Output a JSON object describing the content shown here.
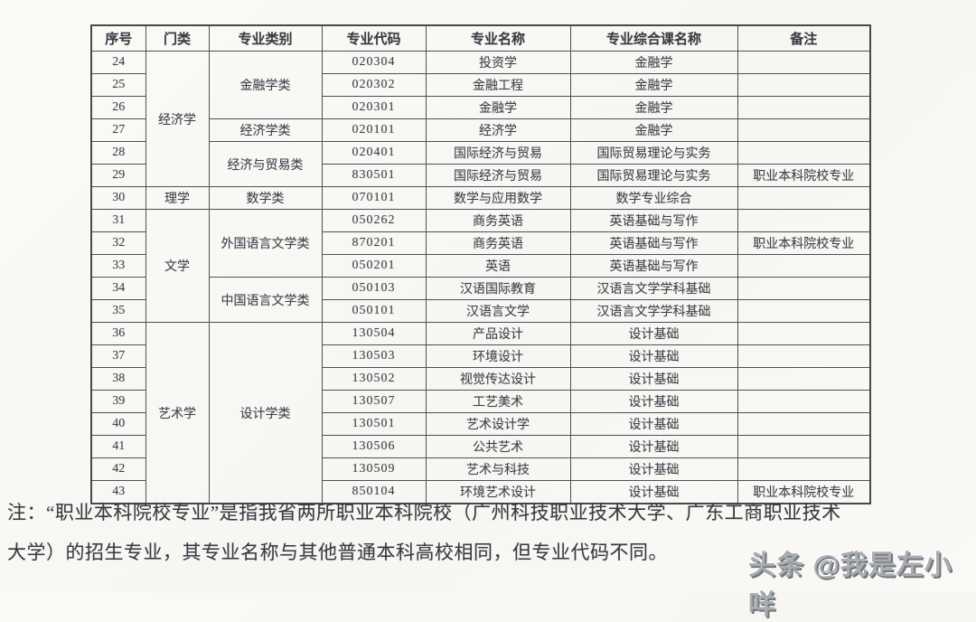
{
  "table": {
    "headers": [
      "序号",
      "门类",
      "专业类别",
      "专业代码",
      "专业名称",
      "专业综合课名称",
      "备注"
    ],
    "rows": [
      {
        "no": "24",
        "menlei": {
          "text": "经济学",
          "span": 6
        },
        "category": {
          "text": "金融学类",
          "span": 3
        },
        "code": "020304",
        "major": "投资学",
        "course": "金融学",
        "remark": ""
      },
      {
        "no": "25",
        "code": "020302",
        "major": "金融工程",
        "course": "金融学",
        "remark": ""
      },
      {
        "no": "26",
        "code": "020301",
        "major": "金融学",
        "course": "金融学",
        "remark": ""
      },
      {
        "no": "27",
        "category": {
          "text": "经济学类",
          "span": 1
        },
        "code": "020101",
        "major": "经济学",
        "course": "金融学",
        "remark": ""
      },
      {
        "no": "28",
        "category": {
          "text": "经济与贸易类",
          "span": 2
        },
        "code": "020401",
        "major": "国际经济与贸易",
        "course": "国际贸易理论与实务",
        "remark": ""
      },
      {
        "no": "29",
        "code": "830501",
        "major": "国际经济与贸易",
        "course": "国际贸易理论与实务",
        "remark": "职业本科院校专业"
      },
      {
        "no": "30",
        "menlei": {
          "text": "理学",
          "span": 1
        },
        "category": {
          "text": "数学类",
          "span": 1
        },
        "code": "070101",
        "major": "数学与应用数学",
        "course": "数学专业综合",
        "remark": ""
      },
      {
        "no": "31",
        "menlei": {
          "text": "文学",
          "span": 5
        },
        "category": {
          "text": "外国语言文学类",
          "span": 3
        },
        "code": "050262",
        "major": "商务英语",
        "course": "英语基础与写作",
        "remark": ""
      },
      {
        "no": "32",
        "code": "870201",
        "major": "商务英语",
        "course": "英语基础与写作",
        "remark": "职业本科院校专业"
      },
      {
        "no": "33",
        "code": "050201",
        "major": "英语",
        "course": "英语基础与写作",
        "remark": ""
      },
      {
        "no": "34",
        "category": {
          "text": "中国语言文学类",
          "span": 2
        },
        "code": "050103",
        "major": "汉语国际教育",
        "course": "汉语言文学学科基础",
        "remark": ""
      },
      {
        "no": "35",
        "code": "050101",
        "major": "汉语言文学",
        "course": "汉语言文学学科基础",
        "remark": ""
      },
      {
        "no": "36",
        "menlei": {
          "text": "艺术学",
          "span": 8
        },
        "category": {
          "text": "设计学类",
          "span": 8
        },
        "code": "130504",
        "major": "产品设计",
        "course": "设计基础",
        "remark": ""
      },
      {
        "no": "37",
        "code": "130503",
        "major": "环境设计",
        "course": "设计基础",
        "remark": ""
      },
      {
        "no": "38",
        "code": "130502",
        "major": "视觉传达设计",
        "course": "设计基础",
        "remark": ""
      },
      {
        "no": "39",
        "code": "130507",
        "major": "工艺美术",
        "course": "设计基础",
        "remark": ""
      },
      {
        "no": "40",
        "code": "130501",
        "major": "艺术设计学",
        "course": "设计基础",
        "remark": ""
      },
      {
        "no": "41",
        "code": "130506",
        "major": "公共艺术",
        "course": "设计基础",
        "remark": ""
      },
      {
        "no": "42",
        "code": "130509",
        "major": "艺术与科技",
        "course": "设计基础",
        "remark": ""
      },
      {
        "no": "43",
        "code": "850104",
        "major": "环境艺术设计",
        "course": "设计基础",
        "remark": "职业本科院校专业"
      }
    ]
  },
  "note": {
    "line1": "注：“职业本科院校专业”是指我省两所职业本科院校（广州科技职业技术大学、广东工商职业技术",
    "line2": "大学）的招生专业，其专业名称与其他普通本科高校相同，但专业代码不同。"
  },
  "watermark": {
    "text": "头条 @我是左小咩"
  },
  "colors": {
    "border": "#4d5156",
    "text": "#3e444b",
    "background": "#f9f8f4"
  }
}
